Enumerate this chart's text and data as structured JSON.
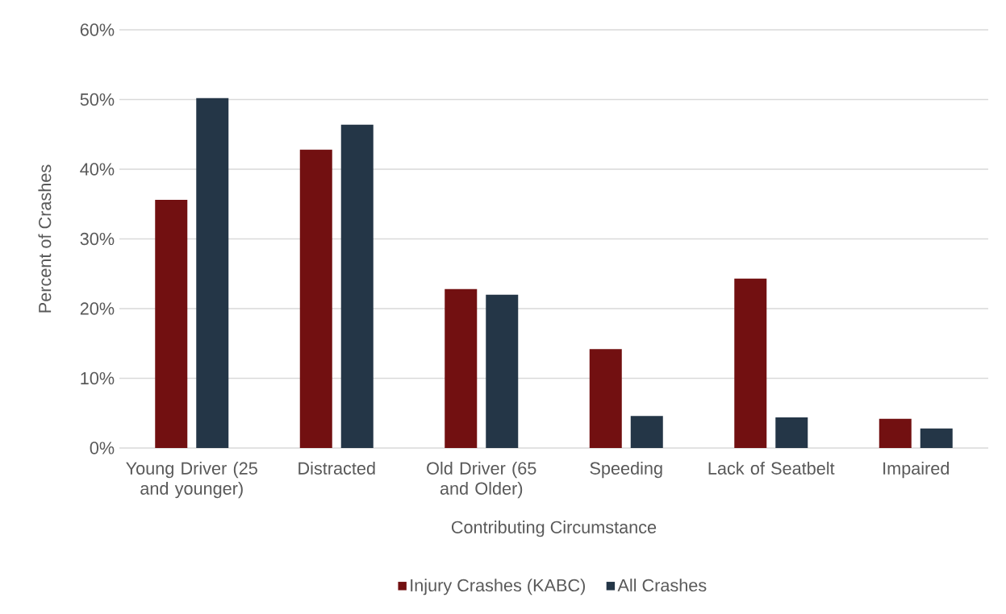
{
  "chart_data": {
    "type": "bar",
    "categories": [
      "Young Driver (25 and younger)",
      "Distracted",
      "Old Driver (65 and Older)",
      "Speeding",
      "Lack of Seatbelt",
      "Impaired"
    ],
    "series": [
      {
        "name": "Injury Crashes (KABC)",
        "color": "#721011",
        "values": [
          35.6,
          42.8,
          22.8,
          14.2,
          24.3,
          4.2
        ]
      },
      {
        "name": "All Crashes",
        "color": "#243647",
        "values": [
          50.2,
          46.4,
          22.0,
          4.6,
          4.4,
          2.8
        ]
      }
    ],
    "xlabel": "Contributing Circumstance",
    "ylabel": "Percent of Crashes",
    "ylim": [
      0,
      60
    ],
    "yticks": [
      {
        "value": 0,
        "label": "0%"
      },
      {
        "value": 10,
        "label": "10%"
      },
      {
        "value": 20,
        "label": "20%"
      },
      {
        "value": 30,
        "label": "30%"
      },
      {
        "value": 40,
        "label": "40%"
      },
      {
        "value": 50,
        "label": "50%"
      },
      {
        "value": 60,
        "label": "60%"
      }
    ],
    "grid": "y",
    "legend": "bottom"
  }
}
